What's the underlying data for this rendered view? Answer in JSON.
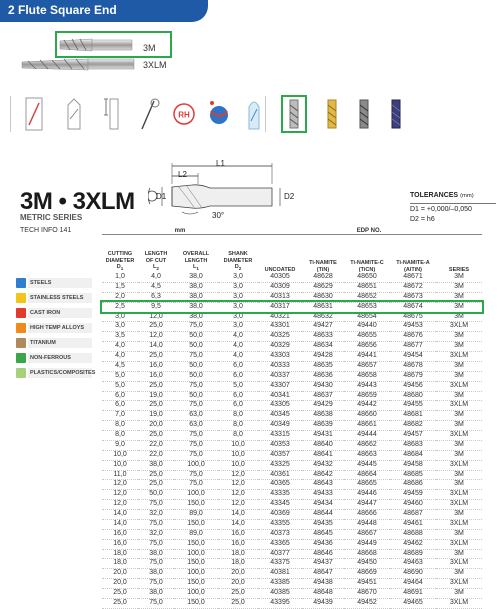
{
  "header": {
    "title": "2 Flute Square End"
  },
  "tools": {
    "label_3m": "3M",
    "label_3xlm": "3XLM"
  },
  "product": {
    "title": "3M • 3XLM",
    "subtitle": "METRIC SERIES",
    "tech_info": "TECH INFO 141"
  },
  "diagram": {
    "l1": "L1",
    "l2": "L2",
    "d1": "D1",
    "d2": "D2",
    "angle": "30°"
  },
  "tolerances": {
    "title": "TOLERANCES",
    "unit": "(mm)",
    "d1": "D1 = +0,000/–0,050",
    "d2": "D2 = h6"
  },
  "materials": [
    {
      "label": "STEELS",
      "color": "#2f7fd0"
    },
    {
      "label": "STAINLESS STEELS",
      "color": "#f3c51a"
    },
    {
      "label": "CAST IRON",
      "color": "#e23b2e"
    },
    {
      "label": "HIGH TEMP ALLOYS",
      "color": "#f08a1c"
    },
    {
      "label": "TITANIUM",
      "color": "#b08a5a"
    },
    {
      "label": "NON-FERROUS",
      "color": "#3aa64a"
    },
    {
      "label": "PLASTICS/COMPOSITES",
      "color": "#a6d07a"
    }
  ],
  "table": {
    "mm_label": "mm",
    "edp_label": "EDP NO.",
    "columns": {
      "cutting": "CUTTING DIAMETER D1",
      "length_cut": "LENGTH OF CUT L2",
      "overall": "OVERALL LENGTH L1",
      "shank": "SHANK DIAMETER D2",
      "uncoated": "UNCOATED",
      "tin": "Ti-NAMITE (TiN)",
      "ticn": "Ti-NAMITE-C (TiCN)",
      "altin": "Ti-NAMITE-A (AlTiN)",
      "series": "SERIES"
    },
    "rows": [
      [
        "1,0",
        "4,0",
        "38,0",
        "3,0",
        "40305",
        "48628",
        "48650",
        "48671",
        "3M"
      ],
      [
        "1,5",
        "4,5",
        "38,0",
        "3,0",
        "40309",
        "48629",
        "48651",
        "48672",
        "3M"
      ],
      [
        "2,0",
        "6,3",
        "38,0",
        "3,0",
        "40313",
        "48630",
        "48652",
        "48673",
        "3M"
      ],
      [
        "2,5",
        "9,5",
        "38,0",
        "3,0",
        "40317",
        "48631",
        "48653",
        "48674",
        "3M"
      ],
      [
        "3,0",
        "12,0",
        "38,0",
        "3,0",
        "40321",
        "48632",
        "48654",
        "48675",
        "3M"
      ],
      [
        "3,0",
        "25,0",
        "75,0",
        "3,0",
        "43301",
        "49427",
        "49440",
        "49453",
        "3XLM"
      ],
      [
        "3,5",
        "12,0",
        "50,0",
        "4,0",
        "40325",
        "48633",
        "48655",
        "48676",
        "3M"
      ],
      [
        "4,0",
        "14,0",
        "50,0",
        "4,0",
        "40329",
        "48634",
        "48656",
        "48677",
        "3M"
      ],
      [
        "4,0",
        "25,0",
        "75,0",
        "4,0",
        "43303",
        "49428",
        "49441",
        "49454",
        "3XLM"
      ],
      [
        "4,5",
        "16,0",
        "50,0",
        "6,0",
        "40333",
        "48635",
        "48657",
        "48678",
        "3M"
      ],
      [
        "5,0",
        "16,0",
        "50,0",
        "6,0",
        "40337",
        "48636",
        "48658",
        "48679",
        "3M"
      ],
      [
        "5,0",
        "25,0",
        "75,0",
        "5,0",
        "43307",
        "49430",
        "49443",
        "49456",
        "3XLM"
      ],
      [
        "6,0",
        "19,0",
        "50,0",
        "6,0",
        "40341",
        "48637",
        "48659",
        "48680",
        "3M"
      ],
      [
        "6,0",
        "25,0",
        "75,0",
        "6,0",
        "43305",
        "49429",
        "49442",
        "49455",
        "3XLM"
      ],
      [
        "7,0",
        "19,0",
        "63,0",
        "8,0",
        "40345",
        "48638",
        "48660",
        "48681",
        "3M"
      ],
      [
        "8,0",
        "20,0",
        "63,0",
        "8,0",
        "40349",
        "48639",
        "48661",
        "48682",
        "3M"
      ],
      [
        "8,0",
        "25,0",
        "75,0",
        "8,0",
        "43315",
        "49431",
        "49444",
        "49457",
        "3XLM"
      ],
      [
        "9,0",
        "22,0",
        "75,0",
        "10,0",
        "40353",
        "48640",
        "48662",
        "48683",
        "3M"
      ],
      [
        "10,0",
        "22,0",
        "75,0",
        "10,0",
        "40357",
        "48641",
        "48663",
        "48684",
        "3M"
      ],
      [
        "10,0",
        "38,0",
        "100,0",
        "10,0",
        "43325",
        "49432",
        "49445",
        "49458",
        "3XLM"
      ],
      [
        "11,0",
        "25,0",
        "75,0",
        "12,0",
        "40361",
        "48642",
        "48664",
        "48685",
        "3M"
      ],
      [
        "12,0",
        "25,0",
        "75,0",
        "12,0",
        "40365",
        "48643",
        "48665",
        "48686",
        "3M"
      ],
      [
        "12,0",
        "50,0",
        "100,0",
        "12,0",
        "43335",
        "49433",
        "49446",
        "49459",
        "3XLM"
      ],
      [
        "12,0",
        "75,0",
        "150,0",
        "12,0",
        "43345",
        "49434",
        "49447",
        "49460",
        "3XLM"
      ],
      [
        "14,0",
        "32,0",
        "89,0",
        "14,0",
        "40369",
        "48644",
        "48666",
        "48687",
        "3M"
      ],
      [
        "14,0",
        "75,0",
        "150,0",
        "14,0",
        "43355",
        "49435",
        "49448",
        "49461",
        "3XLM"
      ],
      [
        "16,0",
        "32,0",
        "89,0",
        "16,0",
        "40373",
        "48645",
        "48667",
        "48688",
        "3M"
      ],
      [
        "16,0",
        "75,0",
        "150,0",
        "16,0",
        "43365",
        "49436",
        "49449",
        "49462",
        "3XLM"
      ],
      [
        "18,0",
        "38,0",
        "100,0",
        "18,0",
        "40377",
        "48646",
        "48668",
        "48689",
        "3M"
      ],
      [
        "18,0",
        "75,0",
        "150,0",
        "18,0",
        "43375",
        "49437",
        "49450",
        "49463",
        "3XLM"
      ],
      [
        "20,0",
        "38,0",
        "100,0",
        "20,0",
        "40381",
        "48647",
        "48669",
        "48690",
        "3M"
      ],
      [
        "20,0",
        "75,0",
        "150,0",
        "20,0",
        "43385",
        "49438",
        "49451",
        "49464",
        "3XLM"
      ],
      [
        "25,0",
        "38,0",
        "100,0",
        "25,0",
        "40385",
        "48648",
        "48670",
        "48691",
        "3M"
      ],
      [
        "25,0",
        "75,0",
        "150,0",
        "25,0",
        "43395",
        "49439",
        "49452",
        "49465",
        "3XLM"
      ]
    ]
  }
}
